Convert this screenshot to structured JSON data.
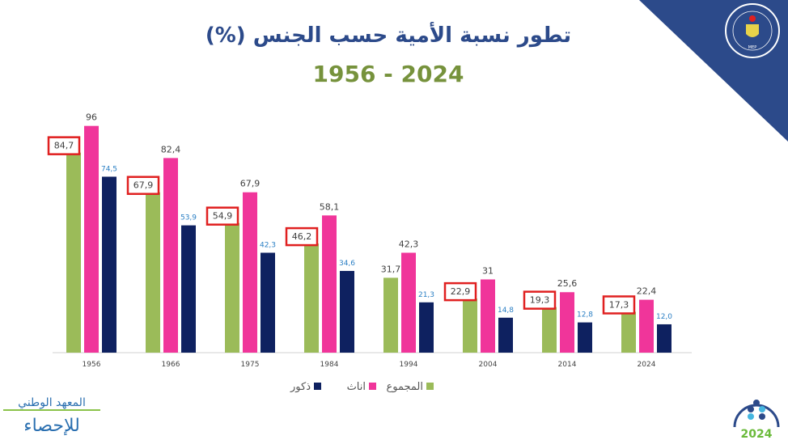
{
  "title": "تطور نسبة الأمية حسب الجنس (%)",
  "subtitle": "1956 - 2024",
  "colors": {
    "total": "#9bbb59",
    "female": "#f0359a",
    "male": "#0e2160",
    "highlight": "#e02020",
    "title": "#2c4a8a",
    "subtitle": "#76923c",
    "banner": "#2c4a8a"
  },
  "logos": {
    "ministry": "MINISTÈRE DE L'ÉCONOMIE ET DE LA PLANIFICATION - MEP",
    "ins_line1": "المعهد الوطني",
    "ins_line2": "للإحصاء",
    "census": "تعداد 2024"
  },
  "chart_data": {
    "type": "bar",
    "categories": [
      "1956",
      "1966",
      "1975",
      "1984",
      "1994",
      "2004",
      "2014",
      "2024"
    ],
    "series": [
      {
        "name": "المجموع",
        "values": [
          84.7,
          67.9,
          54.9,
          46.2,
          31.7,
          22.9,
          19.3,
          17.3
        ],
        "labels": [
          "84,7",
          "67,9",
          "54,9",
          "46,2",
          "31,7",
          "22,9",
          "19,3",
          "17,3"
        ],
        "highlighted": [
          true,
          true,
          true,
          true,
          false,
          true,
          true,
          true
        ]
      },
      {
        "name": "اناث",
        "values": [
          96,
          82.4,
          67.9,
          58.1,
          42.3,
          31,
          25.6,
          22.4
        ],
        "labels": [
          "96",
          "82,4",
          "67,9",
          "58,1",
          "42,3",
          "31",
          "25,6",
          "22,4"
        ]
      },
      {
        "name": "ذكور",
        "values": [
          74.5,
          53.9,
          42.3,
          34.6,
          21.3,
          14.8,
          12.8,
          12.0
        ],
        "labels": [
          "74,5",
          "53,9",
          "42,3",
          "34,6",
          "21,3",
          "14,8",
          "12,8",
          "12,0"
        ]
      }
    ],
    "ylim": [
      0,
      100
    ],
    "grid": false,
    "legend": "bottom"
  }
}
